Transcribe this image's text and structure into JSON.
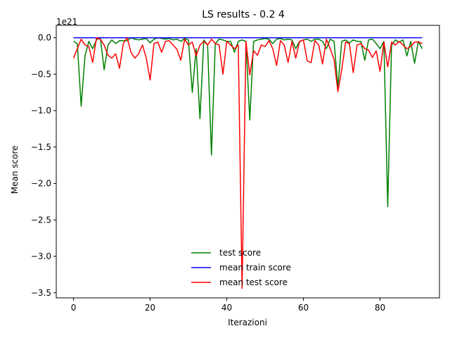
{
  "chart_data": {
    "type": "line",
    "title": "LS results - 0.2 4",
    "xlabel": "Iterazioni",
    "ylabel": "Mean score",
    "offset_label": "1e21",
    "xlim": [
      -4.5,
      95.5
    ],
    "ylim": [
      -3.57,
      0.17
    ],
    "xticks": [
      0,
      20,
      40,
      60,
      80
    ],
    "xtick_labels": [
      "0",
      "20",
      "40",
      "60",
      "80"
    ],
    "yticks": [
      0.0,
      -0.5,
      -1.0,
      -1.5,
      -2.0,
      -2.5,
      -3.0,
      -3.5
    ],
    "ytick_labels": [
      "0.0",
      "−0.5",
      "−1.0",
      "−1.5",
      "−2.0",
      "−2.5",
      "−3.0",
      "−3.5"
    ],
    "grid": false,
    "legend_position": "lower-center",
    "legend_frame": false,
    "series": [
      {
        "name": "test score",
        "color": "#008000",
        "values": [
          -0.05,
          -0.08,
          -0.94,
          -0.25,
          -0.05,
          -0.15,
          -0.03,
          0.0,
          -0.44,
          -0.1,
          -0.03,
          -0.08,
          -0.04,
          -0.04,
          -0.04,
          0.0,
          -0.02,
          -0.03,
          -0.02,
          -0.01,
          -0.07,
          -0.02,
          0.0,
          -0.01,
          -0.02,
          -0.01,
          -0.03,
          -0.02,
          -0.05,
          -0.01,
          -0.03,
          -0.75,
          -0.15,
          -1.11,
          -0.03,
          -0.1,
          -1.61,
          -0.08,
          -0.02,
          -0.03,
          -0.05,
          -0.05,
          -0.2,
          -0.05,
          -0.03,
          -0.05,
          -1.13,
          -0.05,
          -0.03,
          -0.02,
          -0.01,
          -0.02,
          -0.08,
          -0.02,
          -0.01,
          -0.03,
          -0.02,
          -0.03,
          -0.15,
          -0.05,
          -0.03,
          -0.02,
          -0.05,
          -0.02,
          -0.02,
          -0.05,
          -0.15,
          -0.02,
          -0.05,
          -0.68,
          -0.05,
          -0.03,
          -0.07,
          -0.03,
          -0.05,
          -0.05,
          -0.31,
          -0.03,
          -0.02,
          -0.08,
          -0.15,
          -0.05,
          -2.32,
          -0.1,
          -0.03,
          -0.06,
          -0.03,
          -0.25,
          -0.05,
          -0.35,
          -0.05,
          -0.15
        ]
      },
      {
        "name": "mean train score",
        "color": "#0000ff",
        "values": [
          0.0,
          0.0,
          0.0,
          0.0,
          0.0,
          0.0,
          0.0,
          0.0,
          0.0,
          0.0,
          0.0,
          0.0,
          0.0,
          0.0,
          0.0,
          0.0,
          0.0,
          0.0,
          0.0,
          0.0,
          0.0,
          0.0,
          0.0,
          0.0,
          0.0,
          0.0,
          0.0,
          0.0,
          0.0,
          0.0,
          0.0,
          0.0,
          0.0,
          0.0,
          0.0,
          0.0,
          0.0,
          0.0,
          0.0,
          0.0,
          0.0,
          0.0,
          0.0,
          0.0,
          0.0,
          0.0,
          0.0,
          0.0,
          0.0,
          0.0,
          0.0,
          0.0,
          0.0,
          0.0,
          0.0,
          0.0,
          0.0,
          0.0,
          0.0,
          0.0,
          0.0,
          0.0,
          0.0,
          0.0,
          0.0,
          0.0,
          0.0,
          0.0,
          0.0,
          0.0,
          0.0,
          0.0,
          0.0,
          0.0,
          0.0,
          0.0,
          0.0,
          0.0,
          0.0,
          0.0,
          0.0,
          0.0,
          0.0,
          0.0,
          0.0,
          0.0,
          0.0,
          0.0,
          0.0,
          0.0,
          0.0,
          0.0
        ]
      },
      {
        "name": "mean test score",
        "color": "#ff0000",
        "values": [
          -0.28,
          -0.15,
          -0.02,
          -0.1,
          -0.12,
          -0.34,
          0.0,
          -0.02,
          -0.1,
          -0.24,
          -0.28,
          -0.22,
          -0.42,
          -0.08,
          0.0,
          -0.2,
          -0.28,
          -0.22,
          -0.1,
          -0.28,
          -0.58,
          -0.08,
          -0.06,
          -0.2,
          -0.05,
          -0.04,
          -0.1,
          -0.16,
          -0.31,
          -0.02,
          -0.1,
          -0.06,
          -0.25,
          -0.1,
          -0.05,
          -0.1,
          -0.02,
          -0.08,
          -0.1,
          -0.5,
          -0.05,
          -0.1,
          -0.15,
          -0.1,
          -3.44,
          -0.05,
          -0.51,
          -0.18,
          -0.24,
          -0.1,
          -0.12,
          -0.04,
          -0.15,
          -0.38,
          -0.04,
          -0.1,
          -0.34,
          -0.05,
          -0.28,
          -0.05,
          -0.03,
          -0.32,
          -0.34,
          -0.04,
          -0.1,
          -0.36,
          -0.02,
          -0.15,
          -0.3,
          -0.74,
          -0.44,
          -0.06,
          -0.08,
          -0.48,
          -0.1,
          -0.08,
          -0.15,
          -0.17,
          -0.27,
          -0.18,
          -0.46,
          -0.06,
          -0.4,
          -0.06,
          -0.1,
          -0.05,
          -0.1,
          -0.15,
          -0.12,
          -0.06,
          -0.06,
          -0.08
        ]
      }
    ]
  }
}
